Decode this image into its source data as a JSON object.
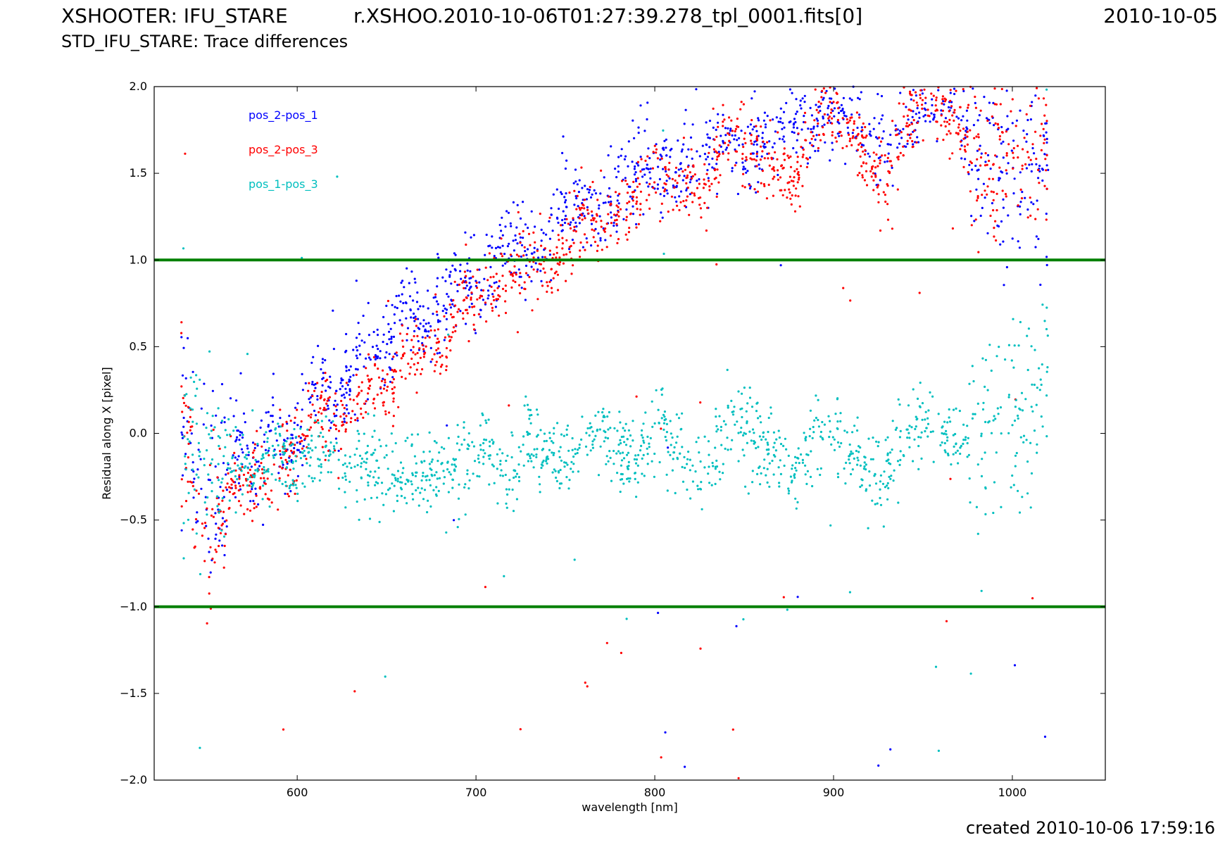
{
  "header": {
    "instrument": "XSHOOTER: IFU_STARE",
    "filename": "r.XSHOO.2010-10-06T01:27:39.278_tpl_0001.fits[0]",
    "date": "2010-10-05",
    "subtitle": "STD_IFU_STARE: Trace differences",
    "created": "created 2010-10-06 17:59:16"
  },
  "chart_data": {
    "type": "scatter",
    "title": "",
    "xlabel": "wavelength [nm]",
    "ylabel": "Residual along X [pixel]",
    "xlim": [
      520,
      1052
    ],
    "ylim": [
      -2.0,
      2.0
    ],
    "xticks": [
      600,
      700,
      800,
      900,
      1000
    ],
    "xtick_labels": [
      "600",
      "700",
      "800",
      "900",
      "1000"
    ],
    "yticks": [
      -2.0,
      -1.5,
      -1.0,
      -0.5,
      0.0,
      0.5,
      1.0,
      1.5,
      2.0
    ],
    "ytick_labels": [
      "−2.0",
      "−1.5",
      "−1.0",
      "−0.5",
      "0.0",
      "0.5",
      "1.0",
      "1.5",
      "2.0"
    ],
    "grid": false,
    "legend_position": "top-left",
    "reference_lines": [
      {
        "y": 1.0,
        "color": "#008000"
      },
      {
        "y": -1.0,
        "color": "#008000"
      }
    ],
    "series": [
      {
        "name": "pos_2-pos_1",
        "color": "#0000ff",
        "trend": [
          [
            535,
            0.2
          ],
          [
            545,
            -0.35
          ],
          [
            550,
            -0.6
          ],
          [
            555,
            -0.45
          ],
          [
            560,
            -0.25
          ],
          [
            565,
            -0.15
          ],
          [
            570,
            -0.1
          ],
          [
            575,
            -0.25
          ],
          [
            580,
            -0.15
          ],
          [
            585,
            0.05
          ],
          [
            590,
            0.0
          ],
          [
            595,
            -0.1
          ],
          [
            600,
            -0.05
          ],
          [
            610,
            0.35
          ],
          [
            620,
            0.15
          ],
          [
            630,
            0.35
          ],
          [
            640,
            0.5
          ],
          [
            650,
            0.45
          ],
          [
            660,
            0.8
          ],
          [
            670,
            0.6
          ],
          [
            680,
            0.75
          ],
          [
            690,
            0.85
          ],
          [
            700,
            0.85
          ],
          [
            710,
            1.0
          ],
          [
            720,
            1.15
          ],
          [
            730,
            1.05
          ],
          [
            740,
            1.1
          ],
          [
            750,
            1.35
          ],
          [
            760,
            1.35
          ],
          [
            770,
            1.25
          ],
          [
            780,
            1.4
          ],
          [
            790,
            1.5
          ],
          [
            800,
            1.55
          ],
          [
            810,
            1.5
          ],
          [
            820,
            1.55
          ],
          [
            830,
            1.6
          ],
          [
            840,
            1.7
          ],
          [
            850,
            1.65
          ],
          [
            860,
            1.65
          ],
          [
            870,
            1.7
          ],
          [
            880,
            1.8
          ],
          [
            890,
            1.85
          ],
          [
            900,
            1.85
          ],
          [
            910,
            1.85
          ],
          [
            920,
            1.7
          ],
          [
            930,
            1.65
          ],
          [
            940,
            1.85
          ],
          [
            950,
            1.9
          ],
          [
            960,
            1.95
          ],
          [
            970,
            1.85
          ],
          [
            980,
            1.65
          ],
          [
            990,
            1.6
          ],
          [
            1000,
            1.55
          ],
          [
            1010,
            1.5
          ],
          [
            1020,
            1.4
          ]
        ],
        "spread": 0.13,
        "count": 1400,
        "seed": 11
      },
      {
        "name": "pos_2-pos_3",
        "color": "#ff0000",
        "trend": [
          [
            535,
            0.2
          ],
          [
            540,
            -0.1
          ],
          [
            545,
            -0.45
          ],
          [
            550,
            -0.5
          ],
          [
            555,
            -0.6
          ],
          [
            560,
            -0.35
          ],
          [
            565,
            -0.25
          ],
          [
            570,
            -0.35
          ],
          [
            575,
            -0.3
          ],
          [
            580,
            -0.25
          ],
          [
            585,
            -0.25
          ],
          [
            590,
            -0.2
          ],
          [
            595,
            -0.15
          ],
          [
            600,
            -0.15
          ],
          [
            610,
            0.15
          ],
          [
            620,
            0.05
          ],
          [
            630,
            0.15
          ],
          [
            640,
            0.3
          ],
          [
            650,
            0.25
          ],
          [
            660,
            0.45
          ],
          [
            670,
            0.45
          ],
          [
            680,
            0.55
          ],
          [
            690,
            0.7
          ],
          [
            700,
            0.8
          ],
          [
            710,
            0.8
          ],
          [
            720,
            0.95
          ],
          [
            730,
            1.05
          ],
          [
            740,
            0.95
          ],
          [
            750,
            1.05
          ],
          [
            760,
            1.25
          ],
          [
            770,
            1.2
          ],
          [
            780,
            1.25
          ],
          [
            790,
            1.35
          ],
          [
            800,
            1.5
          ],
          [
            810,
            1.45
          ],
          [
            820,
            1.45
          ],
          [
            830,
            1.45
          ],
          [
            840,
            1.75
          ],
          [
            850,
            1.65
          ],
          [
            860,
            1.6
          ],
          [
            870,
            1.5
          ],
          [
            880,
            1.45
          ],
          [
            890,
            1.85
          ],
          [
            900,
            1.85
          ],
          [
            910,
            1.75
          ],
          [
            920,
            1.55
          ],
          [
            930,
            1.45
          ],
          [
            940,
            1.85
          ],
          [
            950,
            1.9
          ],
          [
            960,
            1.95
          ],
          [
            970,
            1.8
          ],
          [
            980,
            1.55
          ],
          [
            990,
            1.5
          ],
          [
            1000,
            1.7
          ],
          [
            1010,
            1.6
          ],
          [
            1020,
            1.6
          ]
        ],
        "spread": 0.11,
        "count": 1400,
        "seed": 23
      },
      {
        "name": "pos_1-pos_3",
        "color": "#00bfbf",
        "trend": [
          [
            535,
            0.0
          ],
          [
            545,
            -0.1
          ],
          [
            555,
            -0.15
          ],
          [
            560,
            -0.2
          ],
          [
            570,
            -0.15
          ],
          [
            580,
            -0.2
          ],
          [
            590,
            -0.15
          ],
          [
            600,
            -0.2
          ],
          [
            610,
            -0.15
          ],
          [
            620,
            -0.1
          ],
          [
            630,
            -0.2
          ],
          [
            640,
            -0.15
          ],
          [
            650,
            -0.25
          ],
          [
            660,
            -0.3
          ],
          [
            670,
            -0.2
          ],
          [
            680,
            -0.25
          ],
          [
            690,
            -0.2
          ],
          [
            700,
            -0.1
          ],
          [
            710,
            -0.15
          ],
          [
            720,
            -0.2
          ],
          [
            730,
            0.0
          ],
          [
            740,
            -0.15
          ],
          [
            750,
            -0.2
          ],
          [
            760,
            0.0
          ],
          [
            770,
            -0.05
          ],
          [
            780,
            -0.15
          ],
          [
            790,
            -0.2
          ],
          [
            800,
            0.05
          ],
          [
            810,
            -0.05
          ],
          [
            820,
            -0.15
          ],
          [
            830,
            -0.2
          ],
          [
            840,
            0.05
          ],
          [
            850,
            0.05
          ],
          [
            860,
            -0.05
          ],
          [
            870,
            -0.15
          ],
          [
            880,
            -0.25
          ],
          [
            890,
            0.0
          ],
          [
            900,
            0.05
          ],
          [
            910,
            -0.1
          ],
          [
            920,
            -0.2
          ],
          [
            930,
            -0.25
          ],
          [
            940,
            0.0
          ],
          [
            950,
            0.1
          ],
          [
            960,
            0.0
          ],
          [
            970,
            -0.1
          ],
          [
            980,
            -0.1
          ],
          [
            990,
            0.1
          ],
          [
            1000,
            0.05
          ],
          [
            1010,
            0.0
          ],
          [
            1020,
            0.3
          ]
        ],
        "spread": 0.12,
        "count": 1400,
        "seed": 37
      }
    ]
  }
}
